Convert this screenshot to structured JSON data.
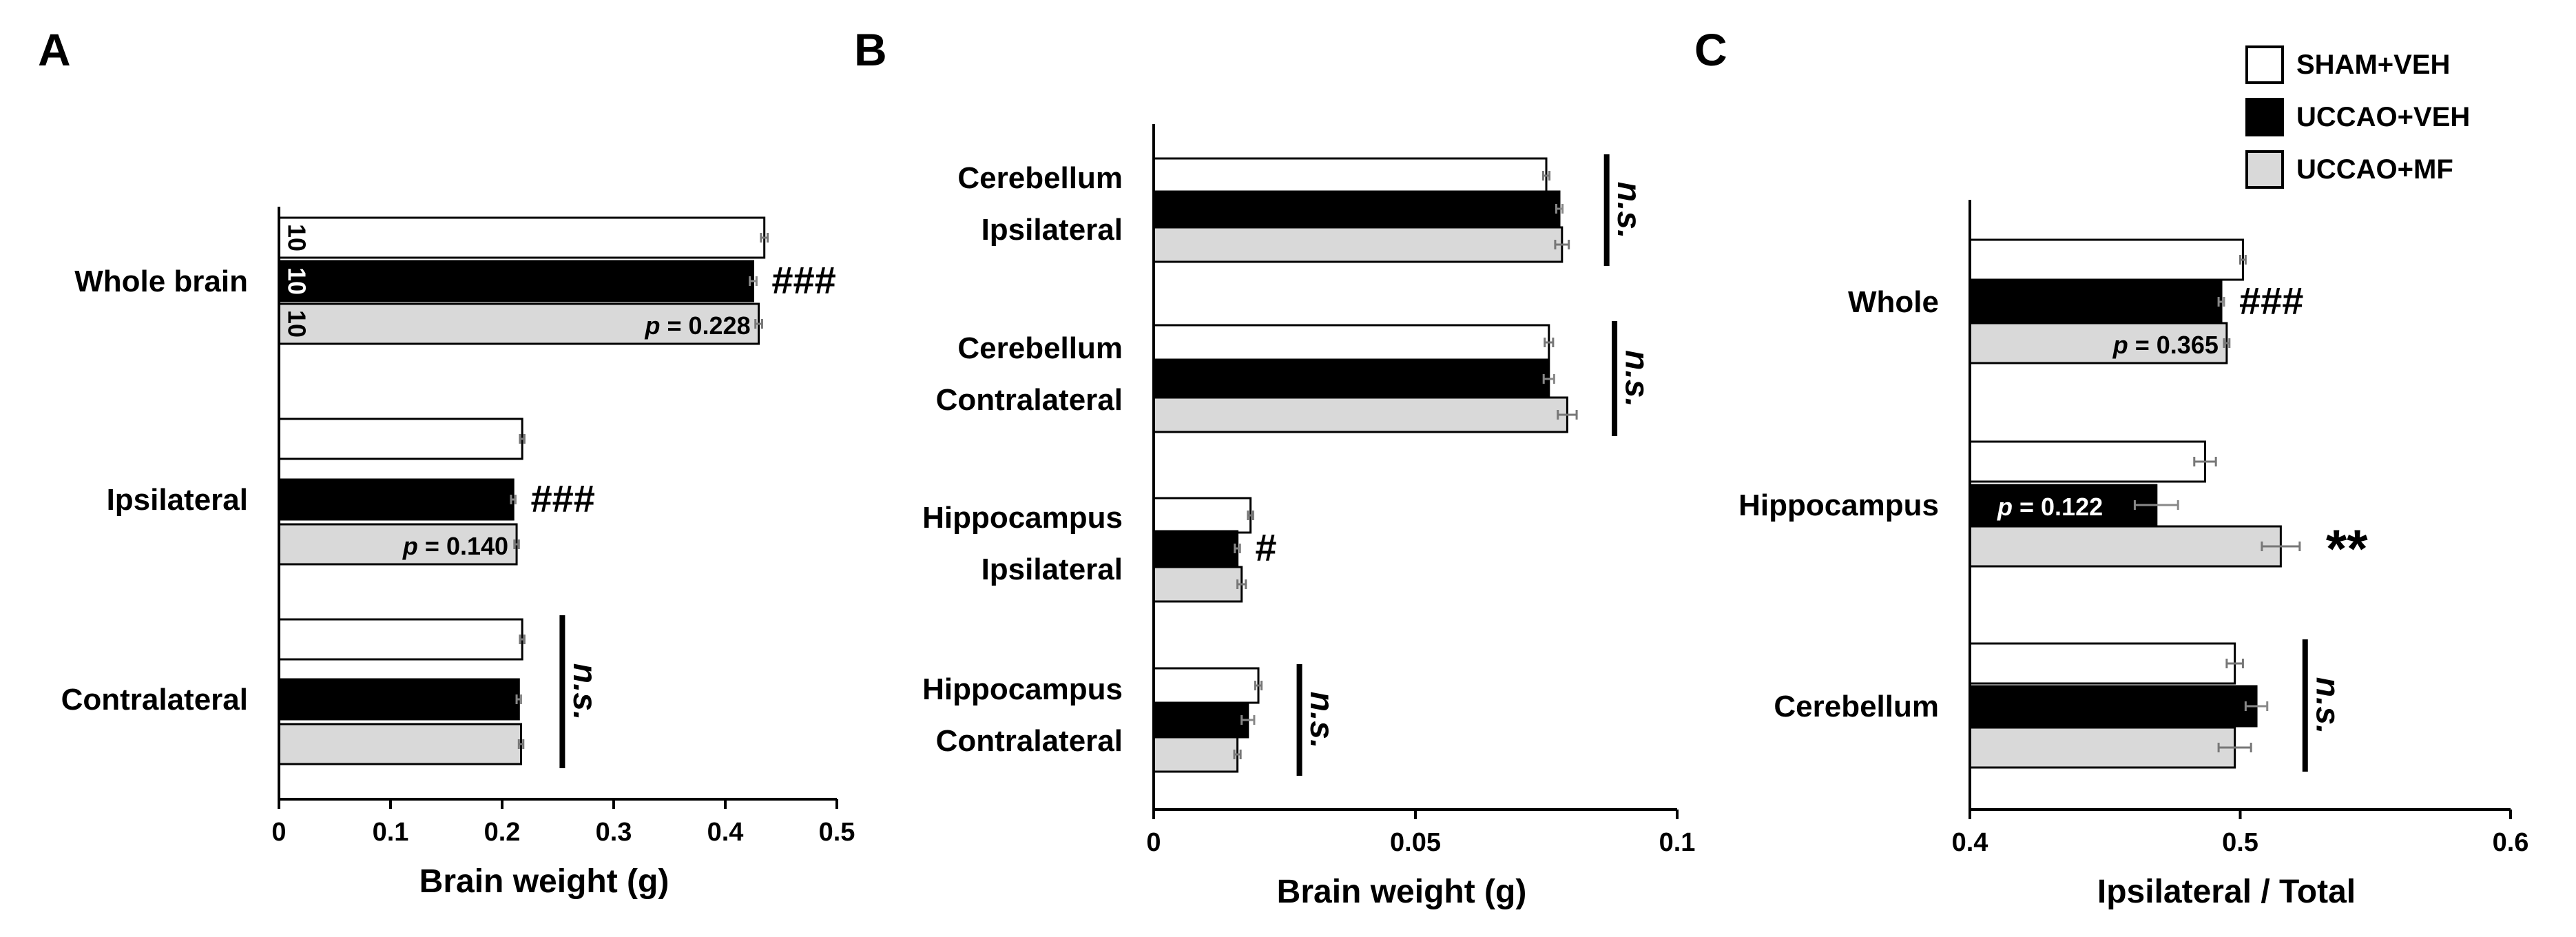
{
  "figure": {
    "legend": [
      {
        "label": "SHAM+VEH",
        "color": "#ffffff"
      },
      {
        "label": "UCCAO+VEH",
        "color": "#000000"
      },
      {
        "label": "UCCAO+MF",
        "color": "#d9d9d9"
      }
    ]
  },
  "chart_data": [
    {
      "panel": "A",
      "type": "bar",
      "orientation": "horizontal",
      "xlabel": "Brain weight (g)",
      "xlim": [
        0,
        0.5
      ],
      "ticks": [
        "0",
        "0.1",
        "0.2",
        "0.3",
        "0.4",
        "0.5"
      ],
      "tick_values": [
        0,
        0.1,
        0.2,
        0.3,
        0.4,
        0.5
      ],
      "categories": [
        "Whole brain",
        "Ipsilateral",
        "Contralateral"
      ],
      "series": [
        {
          "name": "SHAM+VEH",
          "values": [
            0.435,
            0.218,
            0.218
          ],
          "errors": [
            0.003,
            0.002,
            0.002
          ]
        },
        {
          "name": "UCCAO+VEH",
          "values": [
            0.425,
            0.21,
            0.215
          ],
          "errors": [
            0.003,
            0.002,
            0.002
          ]
        },
        {
          "name": "UCCAO+MF",
          "values": [
            0.43,
            0.213,
            0.217
          ],
          "errors": [
            0.003,
            0.002,
            0.002
          ]
        }
      ],
      "n_labels": [
        "10",
        "10",
        "10"
      ],
      "annotations": [
        {
          "category": 0,
          "series": 1,
          "text": "###"
        },
        {
          "category": 0,
          "series": 2,
          "text": "p = 0.228",
          "pstyle": true
        },
        {
          "category": 1,
          "series": 1,
          "text": "###"
        },
        {
          "category": 1,
          "series": 2,
          "text": "p = 0.140",
          "pstyle": true
        },
        {
          "category": 2,
          "text": "n.s.",
          "ns": true
        }
      ]
    },
    {
      "panel": "B",
      "type": "bar",
      "orientation": "horizontal",
      "xlabel": "Brain weight (g)",
      "xlim": [
        0,
        0.1
      ],
      "ticks": [
        "0",
        "0.05",
        "0.1"
      ],
      "tick_values": [
        0,
        0.05,
        0.1
      ],
      "categories": [
        [
          "Cerebellum",
          "Ipsilateral"
        ],
        [
          "Cerebellum",
          "Contralateral"
        ],
        [
          "Hippocampus",
          "Ipsilateral"
        ],
        [
          "Hippocampus",
          "Contralateral"
        ]
      ],
      "series": [
        {
          "name": "SHAM+VEH",
          "values": [
            0.075,
            0.0755,
            0.0185,
            0.02
          ],
          "errors": [
            0.0006,
            0.0008,
            0.0005,
            0.0006
          ]
        },
        {
          "name": "UCCAO+VEH",
          "values": [
            0.0775,
            0.0755,
            0.016,
            0.018
          ],
          "errors": [
            0.0006,
            0.001,
            0.0005,
            0.0012
          ]
        },
        {
          "name": "UCCAO+MF",
          "values": [
            0.078,
            0.079,
            0.0168,
            0.016
          ],
          "errors": [
            0.0013,
            0.0018,
            0.0008,
            0.0006
          ]
        }
      ],
      "annotations": [
        {
          "category": 0,
          "text": "n.s.",
          "ns": true
        },
        {
          "category": 1,
          "text": "n.s.",
          "ns": true
        },
        {
          "category": 2,
          "series": 1,
          "text": "#"
        },
        {
          "category": 3,
          "text": "n.s.",
          "ns": true
        }
      ]
    },
    {
      "panel": "C",
      "type": "bar",
      "orientation": "horizontal",
      "xlabel": "Ipsilateral / Total",
      "xlim": [
        0.4,
        0.6
      ],
      "ticks": [
        "0.4",
        "0.5",
        "0.6"
      ],
      "tick_values": [
        0.4,
        0.5,
        0.6
      ],
      "categories": [
        "Whole",
        "Hippocampus",
        "Cerebellum"
      ],
      "series": [
        {
          "name": "SHAM+VEH",
          "values": [
            0.501,
            0.487,
            0.498
          ],
          "errors": [
            0.001,
            0.004,
            0.003
          ]
        },
        {
          "name": "UCCAO+VEH",
          "values": [
            0.493,
            0.469,
            0.506
          ],
          "errors": [
            0.001,
            0.008,
            0.004
          ]
        },
        {
          "name": "UCCAO+MF",
          "values": [
            0.495,
            0.515,
            0.498
          ],
          "errors": [
            0.001,
            0.007,
            0.006
          ]
        }
      ],
      "annotations": [
        {
          "category": 0,
          "series": 1,
          "text": "###"
        },
        {
          "category": 0,
          "series": 2,
          "text": "p = 0.365",
          "pstyle": true
        },
        {
          "category": 1,
          "series": 1,
          "text": "p = 0.122",
          "pstyle": true,
          "inside_white": true
        },
        {
          "category": 1,
          "series": 2,
          "text": "**",
          "big": true
        },
        {
          "category": 2,
          "text": "n.s.",
          "ns": true
        }
      ]
    }
  ]
}
